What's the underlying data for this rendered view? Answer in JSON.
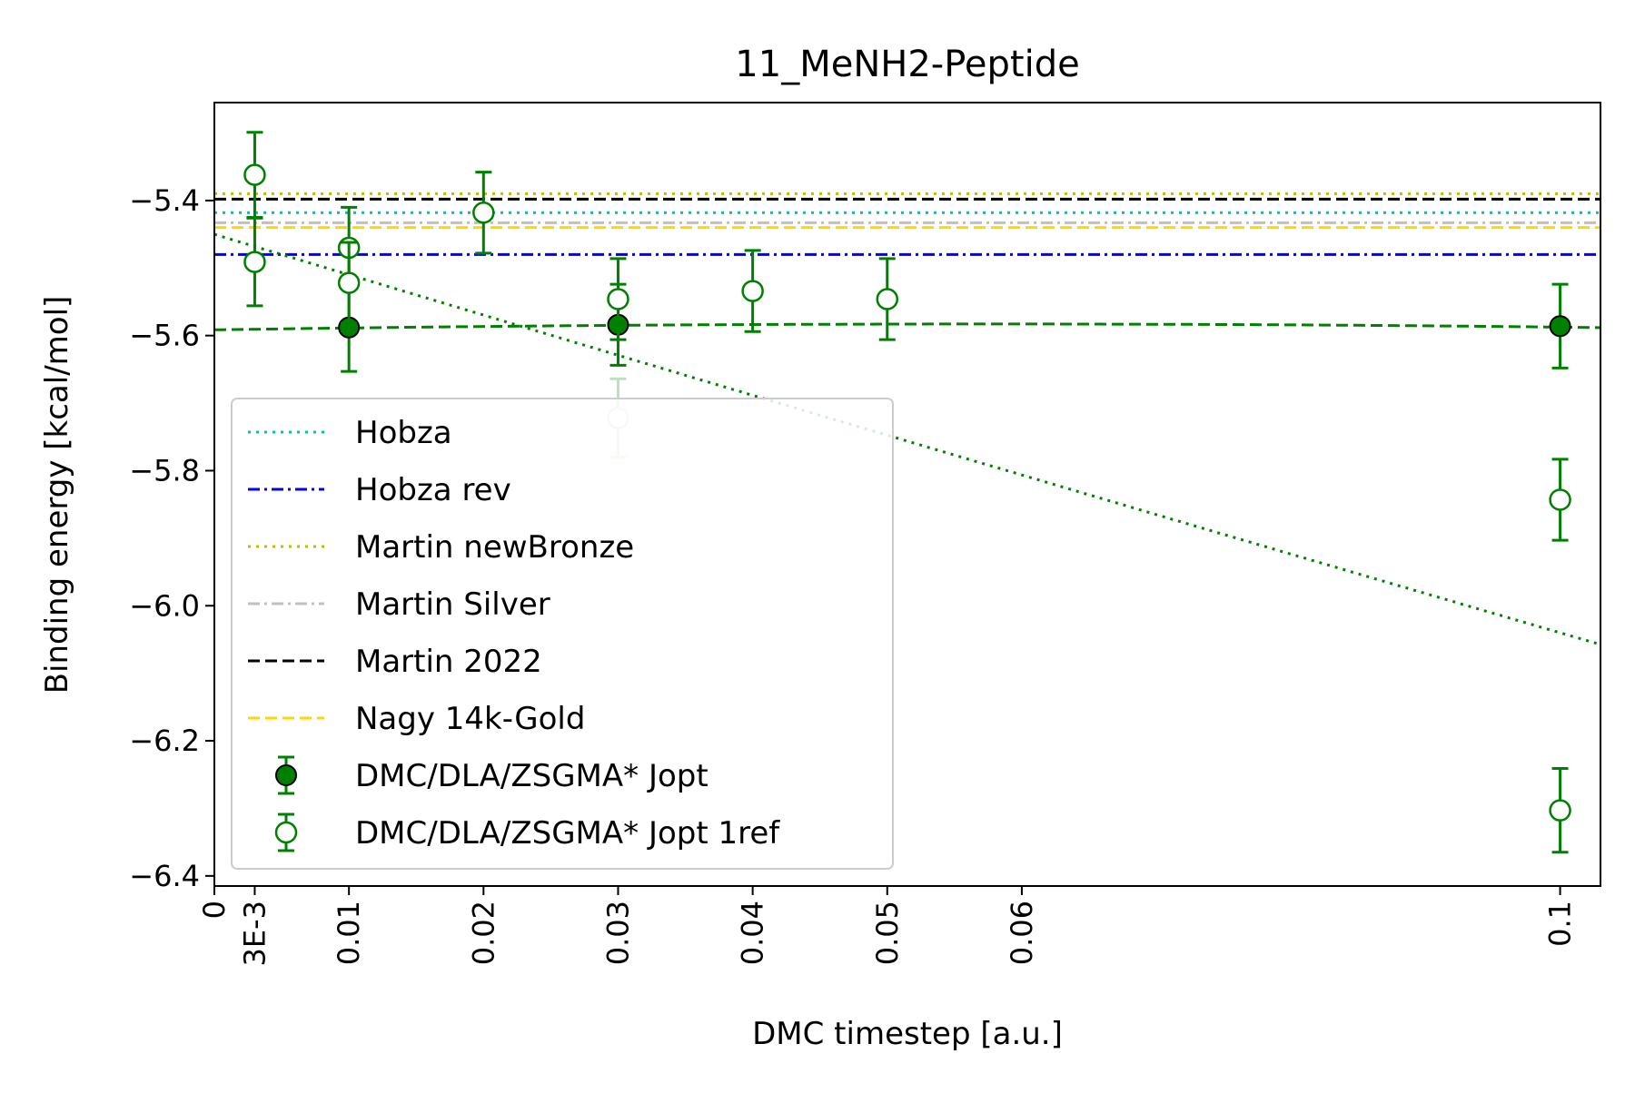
{
  "chart_data": {
    "type": "scatter",
    "title": "11_MeNH2-Peptide",
    "xlabel": "DMC timestep [a.u.]",
    "ylabel": "Binding energy [kcal/mol]",
    "xlim": [
      0,
      0.103
    ],
    "ylim": [
      -6.415,
      -5.255
    ],
    "x_ticks": [
      {
        "value": 0,
        "label": "0"
      },
      {
        "value": 0.003,
        "label": "3E-3"
      },
      {
        "value": 0.01,
        "label": "0.01"
      },
      {
        "value": 0.02,
        "label": "0.02"
      },
      {
        "value": 0.03,
        "label": "0.03"
      },
      {
        "value": 0.04,
        "label": "0.04"
      },
      {
        "value": 0.05,
        "label": "0.05"
      },
      {
        "value": 0.06,
        "label": "0.06"
      },
      {
        "value": 0.1,
        "label": "0.1"
      }
    ],
    "y_ticks": [
      {
        "value": -5.4,
        "label": "−5.4"
      },
      {
        "value": -5.6,
        "label": "−5.6"
      },
      {
        "value": -5.8,
        "label": "−5.8"
      },
      {
        "value": -6.0,
        "label": "−6.0"
      },
      {
        "value": -6.2,
        "label": "−6.2"
      },
      {
        "value": -6.4,
        "label": "−6.4"
      }
    ],
    "reference_lines": [
      {
        "name": "Hobza",
        "y": -5.418,
        "color": "#00bfbf",
        "style": "dotted"
      },
      {
        "name": "Hobza rev",
        "y": -5.48,
        "color": "#0000ff",
        "style": "dashdot"
      },
      {
        "name": "Martin newBronze",
        "y": -5.39,
        "color": "#bfbf00",
        "style": "dotted"
      },
      {
        "name": "Martin Silver",
        "y": -5.433,
        "color": "#c0c0c0",
        "style": "dashdot"
      },
      {
        "name": "Martin 2022",
        "y": -5.398,
        "color": "#000000",
        "style": "dashed"
      },
      {
        "name": "Nagy 14k-Gold",
        "y": -5.44,
        "color": "#ffd700",
        "style": "dashed"
      }
    ],
    "series": [
      {
        "name": "DMC/DLA/ZSGMA* Jopt",
        "marker": "filled",
        "color": "#008000",
        "points": [
          {
            "x": 0.01,
            "y": -5.588,
            "err": 0.065
          },
          {
            "x": 0.03,
            "y": -5.584,
            "err": 0.06
          },
          {
            "x": 0.1,
            "y": -5.586,
            "err": 0.062
          }
        ]
      },
      {
        "name": "DMC/DLA/ZSGMA* Jopt 1ref",
        "marker": "open",
        "color": "#008000",
        "points": [
          {
            "x": 0.003,
            "y": -5.362,
            "err": 0.063
          },
          {
            "x": 0.003,
            "y": -5.491,
            "err": 0.065
          },
          {
            "x": 0.01,
            "y": -5.47,
            "err": 0.06
          },
          {
            "x": 0.01,
            "y": -5.522,
            "err": 0.06
          },
          {
            "x": 0.02,
            "y": -5.418,
            "err": 0.06
          },
          {
            "x": 0.03,
            "y": -5.546,
            "err": 0.06
          },
          {
            "x": 0.03,
            "y": -5.722,
            "err": 0.058,
            "faded": true
          },
          {
            "x": 0.04,
            "y": -5.534,
            "err": 0.06
          },
          {
            "x": 0.05,
            "y": -5.546,
            "err": 0.06
          },
          {
            "x": 0.1,
            "y": -5.843,
            "err": 0.06
          },
          {
            "x": 0.1,
            "y": -6.303,
            "err": 0.062
          }
        ]
      }
    ],
    "fit_curves": [
      {
        "style": "dashed",
        "color": "#008000",
        "coef": [
          -5.5915,
          0.3,
          -2.6
        ]
      },
      {
        "style": "dotted",
        "color": "#008000",
        "coef": [
          -5.45,
          -6.0,
          1.0
        ]
      }
    ],
    "legend_position": "lower-left",
    "grid": false
  }
}
